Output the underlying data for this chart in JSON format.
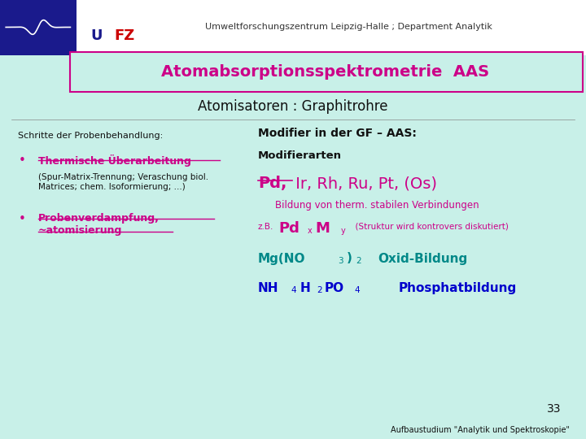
{
  "bg_color": "#c8f0e8",
  "top_bar_text": "Umweltforschungszentrum Leipzig-Halle ; Department Analytik",
  "title_text": "Atomabsorptionsspektrometrie  AAS",
  "subtitle_text": "Atomisatoren : Graphitrohre",
  "left_header": "Schritte der Probenbehandlung:",
  "bullet1_text": "Thermische Überarbeitung",
  "bullet1_sub": "(Spur-Matrix-Trennung; Veraschung biol.\nMatrices; chem. Isoformierung; ...)",
  "bullet2_text": "Probenverdampfung,\n~atomisierung",
  "right_header": "Modifier in der GF – AAS:",
  "right_sub1": "Modifierarten",
  "right_pd_bold": "Pd,",
  "right_elements": " Ir, Rh, Ru, Pt, (Os)",
  "right_therm": "Bildung von therm. stabilen Verbindungen",
  "zb_label": "z.B.",
  "zb_note": "  (Struktur wird kontrovers diskutiert)",
  "page_num": "33",
  "footer_text": "Aufbaustudium \"Analytik und Spektroskopie\"",
  "color_magenta": "#cc0088",
  "color_teal": "#008888",
  "color_blue": "#0000cc",
  "color_dark": "#111111",
  "color_white": "#ffffff",
  "color_logo_blue": "#1a1a8c",
  "color_logo_red": "#cc0000"
}
